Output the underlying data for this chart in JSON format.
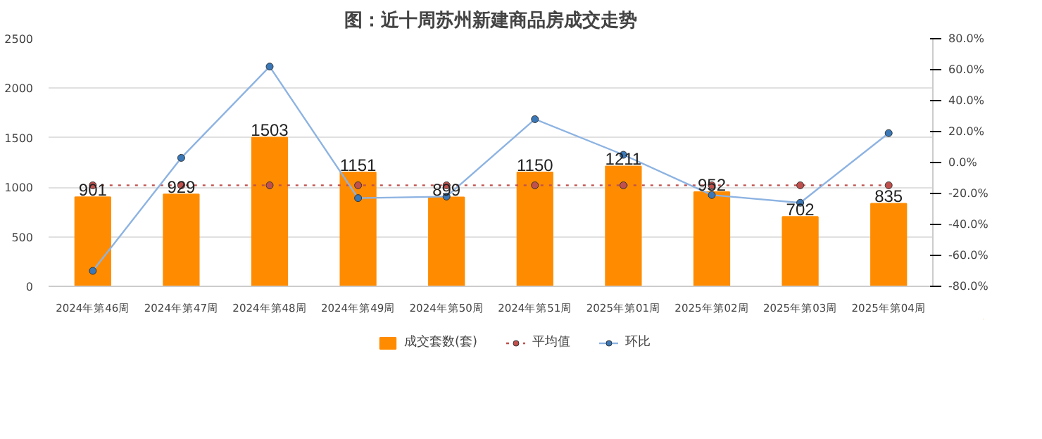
{
  "chart_data": {
    "type": "bar",
    "title": "图：近十周苏州新建商品房成交走势",
    "categories": [
      "2024年第46周",
      "2024年第47周",
      "2024年第48周",
      "2024年第49周",
      "2024年第50周",
      "2024年第51周",
      "2025年第01周",
      "2025年第02周",
      "2025年第03周",
      "2025年第04周"
    ],
    "series": [
      {
        "name": "成交套数(套)",
        "color": "#ff8c00",
        "values": [
          901,
          929,
          1503,
          1151,
          899,
          1150,
          1211,
          952,
          702,
          835
        ],
        "data_labels": true
      },
      {
        "name": "平均值",
        "type": "line",
        "color": "#c0504d",
        "line_style": "dotted",
        "marker": "circle",
        "values": [
          1020,
          1020,
          1020,
          1020,
          1020,
          1020,
          1020,
          1020,
          1020,
          1020
        ]
      },
      {
        "name": "环比",
        "type": "line",
        "color": "#3a78b8",
        "line_style": "solid",
        "marker": "circle",
        "axis": "y2",
        "values": [
          -70,
          3,
          62,
          -23,
          -22,
          28,
          5,
          -21,
          -26,
          19
        ]
      }
    ],
    "ylim": [
      0,
      2500
    ],
    "yticks": [
      0,
      500,
      1000,
      1500,
      2000,
      2500
    ],
    "y2lim": [
      -80,
      80
    ],
    "y2ticks": [
      {
        "value": -80,
        "label": "-80.0%"
      },
      {
        "value": -60,
        "label": "-60.0%"
      },
      {
        "value": -40,
        "label": "-40.0%"
      },
      {
        "value": -20,
        "label": "-20.0%"
      },
      {
        "value": 0,
        "label": "0.0%"
      },
      {
        "value": 20,
        "label": "20.0%"
      },
      {
        "value": 40,
        "label": "40.0%"
      },
      {
        "value": 60,
        "label": "60.0%"
      },
      {
        "value": 80,
        "label": "80.0%"
      }
    ],
    "grid": "y",
    "legend": "bottom"
  }
}
